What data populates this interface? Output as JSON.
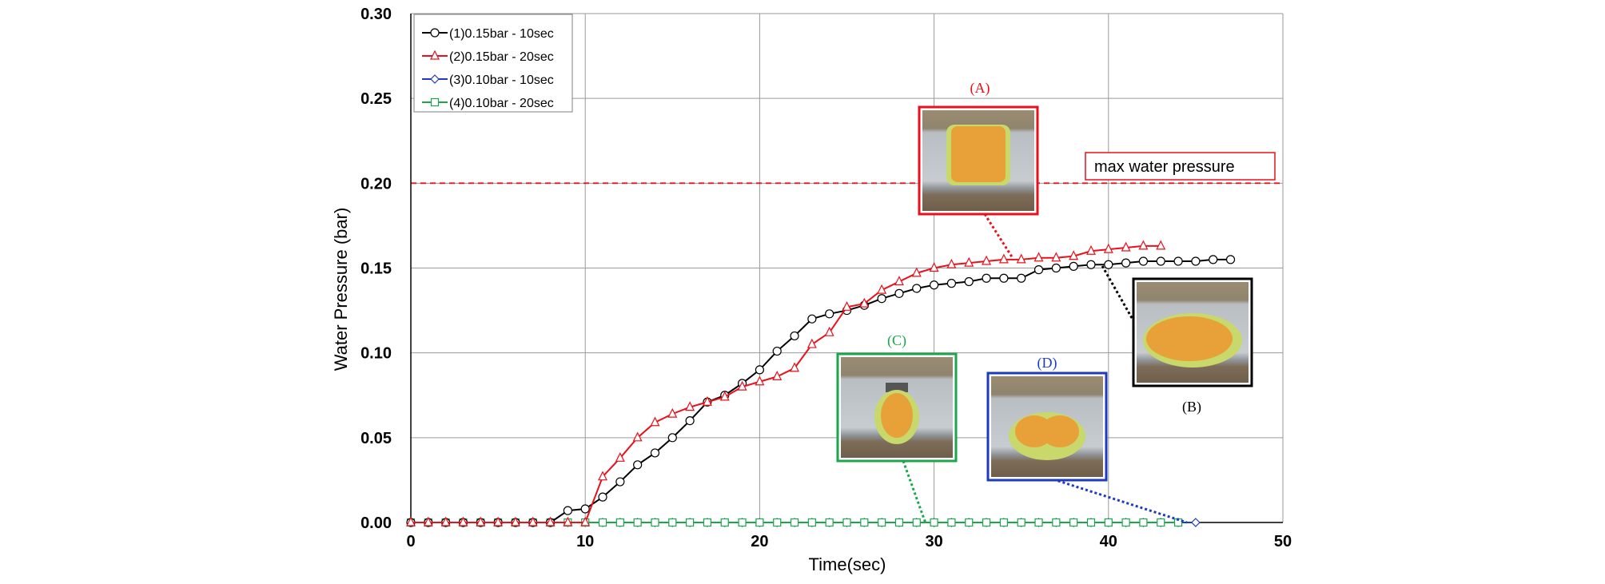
{
  "chart_data": {
    "type": "line",
    "title": "",
    "xlabel": "Time(sec)",
    "ylabel": "Water Pressure (bar)",
    "xlim": [
      0,
      50
    ],
    "ylim": [
      0,
      0.3
    ],
    "xticks": [
      "0",
      "10",
      "20",
      "30",
      "40",
      "50"
    ],
    "yticks": [
      "0.00",
      "0.05",
      "0.10",
      "0.15",
      "0.20",
      "0.25",
      "0.30"
    ],
    "grid": true,
    "legend_position": "top-left",
    "reference_line": {
      "label": "max water pressure",
      "y": 0.2,
      "color": "#e8101a"
    },
    "series": [
      {
        "name": "(1)0.15bar - 10sec",
        "color": "#000000",
        "marker": "circle",
        "x": [
          0,
          1,
          2,
          3,
          4,
          5,
          6,
          7,
          8,
          9,
          10,
          11,
          12,
          13,
          14,
          15,
          16,
          17,
          18,
          19,
          20,
          21,
          22,
          23,
          24,
          25,
          26,
          27,
          28,
          29,
          30,
          31,
          32,
          33,
          34,
          35,
          36,
          37,
          38,
          39,
          40,
          41,
          42,
          43,
          44,
          45,
          46,
          47
        ],
        "y": [
          0,
          0,
          0,
          0,
          0,
          0,
          0,
          0,
          0,
          0.007,
          0.008,
          0.015,
          0.024,
          0.034,
          0.041,
          0.05,
          0.06,
          0.071,
          0.075,
          0.082,
          0.09,
          0.101,
          0.11,
          0.12,
          0.123,
          0.125,
          0.128,
          0.132,
          0.135,
          0.138,
          0.14,
          0.141,
          0.142,
          0.144,
          0.144,
          0.144,
          0.149,
          0.15,
          0.151,
          0.152,
          0.152,
          0.153,
          0.154,
          0.154,
          0.154,
          0.154,
          0.155,
          0.155
        ]
      },
      {
        "name": "(2)0.15bar - 20sec",
        "color": "#e8101a",
        "marker": "triangle",
        "x": [
          0,
          1,
          2,
          3,
          4,
          5,
          6,
          7,
          8,
          9,
          10,
          11,
          12,
          13,
          14,
          15,
          16,
          17,
          18,
          19,
          20,
          21,
          22,
          23,
          24,
          25,
          26,
          27,
          28,
          29,
          30,
          31,
          32,
          33,
          34,
          35,
          36,
          37,
          38,
          39,
          40,
          41,
          42,
          43
        ],
        "y": [
          0,
          0,
          0,
          0,
          0,
          0,
          0,
          0,
          0,
          0,
          0,
          0.027,
          0.038,
          0.05,
          0.059,
          0.064,
          0.068,
          0.071,
          0.074,
          0.08,
          0.083,
          0.086,
          0.091,
          0.105,
          0.112,
          0.127,
          0.129,
          0.137,
          0.142,
          0.147,
          0.15,
          0.152,
          0.153,
          0.154,
          0.155,
          0.155,
          0.156,
          0.156,
          0.157,
          0.16,
          0.161,
          0.162,
          0.163,
          0.163
        ]
      },
      {
        "name": "(3)0.10bar - 10sec",
        "color": "#1f3bbd",
        "marker": "diamond",
        "x": [
          0,
          1,
          2,
          3,
          4,
          5,
          6,
          7,
          8,
          9,
          10,
          11,
          12,
          13,
          14,
          15,
          16,
          17,
          18,
          19,
          20,
          21,
          22,
          23,
          24,
          25,
          26,
          27,
          28,
          29,
          30,
          31,
          32,
          33,
          34,
          35,
          36,
          37,
          38,
          39,
          40,
          41,
          42,
          43,
          44,
          45
        ],
        "y": [
          0,
          0,
          0,
          0,
          0,
          0,
          0,
          0,
          0,
          0,
          0,
          0,
          0,
          0,
          0,
          0,
          0,
          0,
          0,
          0,
          0,
          0,
          0,
          0,
          0,
          0,
          0,
          0,
          0,
          0,
          0,
          0,
          0,
          0,
          0,
          0,
          0,
          0,
          0,
          0,
          0,
          0,
          0,
          0,
          0,
          0
        ]
      },
      {
        "name": "(4)0.10bar - 20sec",
        "color": "#1aa64b",
        "marker": "square",
        "x": [
          0,
          1,
          2,
          3,
          4,
          5,
          6,
          7,
          8,
          9,
          10,
          11,
          12,
          13,
          14,
          15,
          16,
          17,
          18,
          19,
          20,
          21,
          22,
          23,
          24,
          25,
          26,
          27,
          28,
          29,
          30,
          31,
          32,
          33,
          34,
          35,
          36,
          37,
          38,
          39,
          40,
          41,
          42,
          43,
          44
        ],
        "y": [
          0,
          0,
          0,
          0,
          0,
          0,
          0,
          0,
          0,
          0,
          0,
          0,
          0,
          0,
          0,
          0,
          0,
          0,
          0,
          0,
          0,
          0,
          0,
          0,
          0,
          0,
          0,
          0,
          0,
          0,
          0,
          0,
          0,
          0,
          0,
          0,
          0,
          0,
          0,
          0,
          0,
          0,
          0,
          0,
          0
        ]
      }
    ],
    "annotations": [
      {
        "label": "(A)",
        "color": "#e8101a",
        "target": [
          34.5,
          0.156
        ]
      },
      {
        "label": "(B)",
        "color": "#000000",
        "target": [
          39.6,
          0.152
        ]
      },
      {
        "label": "(C)",
        "color": "#1aa64b",
        "target": [
          29.5,
          0.0
        ]
      },
      {
        "label": "(D)",
        "color": "#1f3bbd",
        "target": [
          44.5,
          0.0
        ]
      }
    ]
  }
}
